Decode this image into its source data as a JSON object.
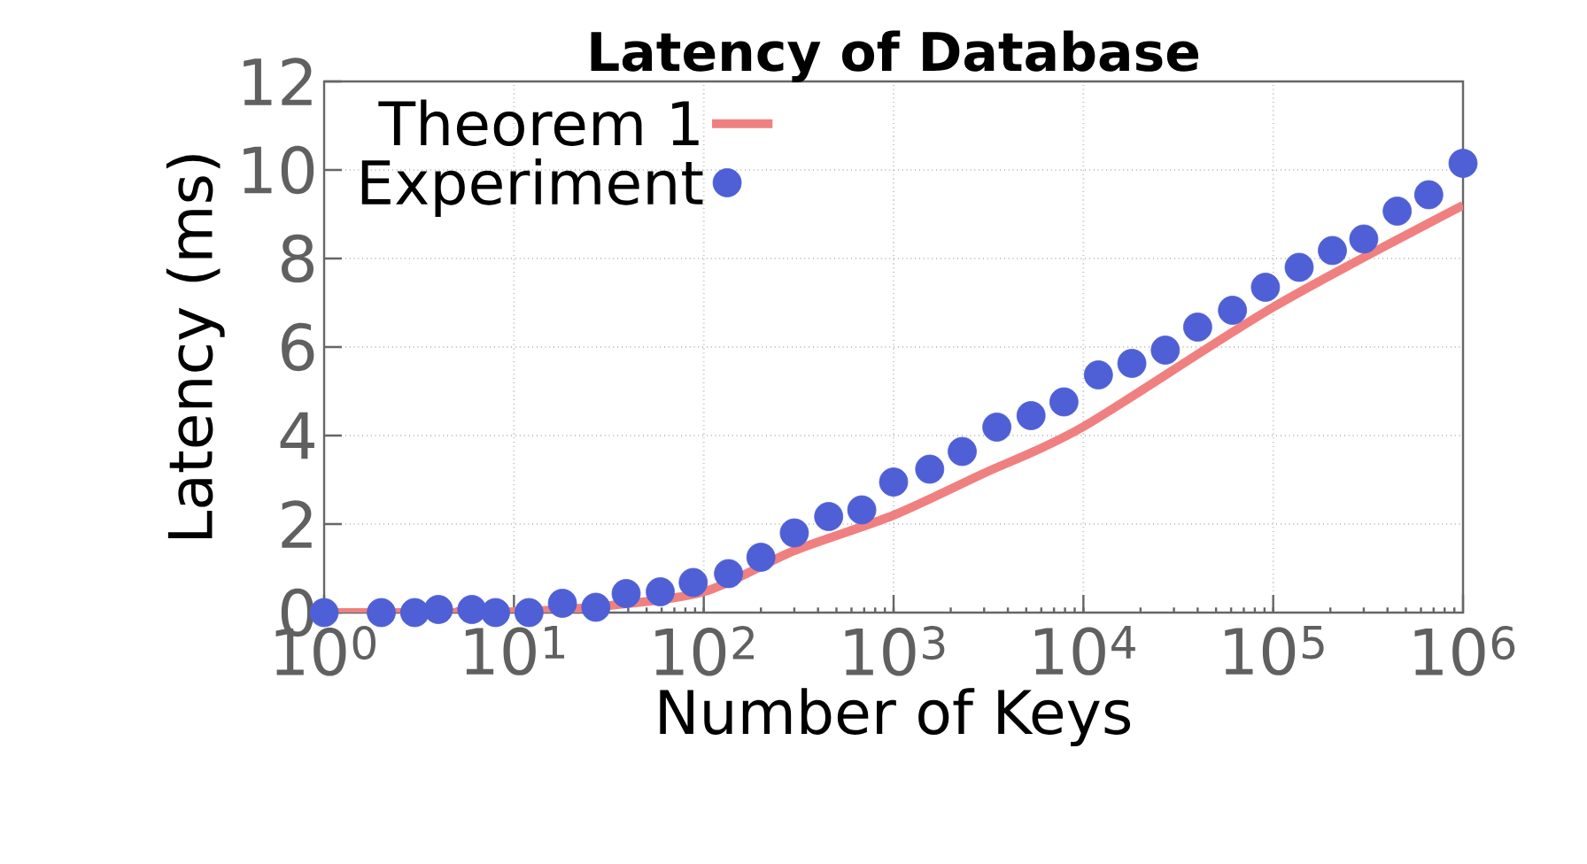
{
  "chart_data": {
    "type": "scatter",
    "title": "Latency of Database",
    "xlabel": "Number of Keys",
    "ylabel": "Latency (ms)",
    "log": "x",
    "xlim": [
      1,
      1000000
    ],
    "ylim": [
      0,
      12
    ],
    "xticks": [
      {
        "value": 1,
        "label": "10$^{0}$"
      },
      {
        "value": 10,
        "label": "10$^{1}$"
      },
      {
        "value": 100,
        "label": "10$^{2}$"
      },
      {
        "value": 1000,
        "label": "10$^{3}$"
      },
      {
        "value": 10000,
        "label": "10$^{4}$"
      },
      {
        "value": 100000,
        "label": "10$^{5}$"
      },
      {
        "value": 1000000,
        "label": "10$^{6}$"
      }
    ],
    "yticks": [
      0,
      2,
      4,
      6,
      8,
      10,
      12
    ],
    "grid": true,
    "legend": "top left",
    "series": [
      {
        "name": "Theorem 1",
        "type": "line",
        "color": "#f08080",
        "marker": "none",
        "line_style": "solid",
        "x": [
          1,
          10,
          30,
          100,
          300,
          1000,
          3000,
          10000,
          100000,
          1000000
        ],
        "values": [
          0,
          0.02,
          0.15,
          0.47,
          1.4,
          2.2,
          3.15,
          4.2,
          6.9,
          9.2
        ]
      },
      {
        "name": "Experiment",
        "type": "scatter",
        "color": "#4f5fd6",
        "marker": "circle",
        "x": [
          1,
          2,
          3,
          4,
          6,
          8,
          12,
          18,
          27,
          39,
          59,
          88,
          135,
          200,
          300,
          455,
          680,
          1000,
          1550,
          2300,
          3500,
          5300,
          7900,
          12000,
          18000,
          27000,
          40000,
          61000,
          91000,
          137000,
          205000,
          300000,
          450000,
          660000,
          1000000
        ],
        "values": [
          0,
          0,
          0,
          0.07,
          0.07,
          0,
          0,
          0.21,
          0.12,
          0.43,
          0.47,
          0.68,
          0.88,
          1.25,
          1.8,
          2.17,
          2.32,
          2.95,
          3.24,
          3.64,
          4.19,
          4.45,
          4.76,
          5.37,
          5.63,
          5.93,
          6.45,
          6.83,
          7.35,
          7.8,
          8.18,
          8.44,
          9.07,
          9.44,
          10.15
        ]
      }
    ]
  }
}
